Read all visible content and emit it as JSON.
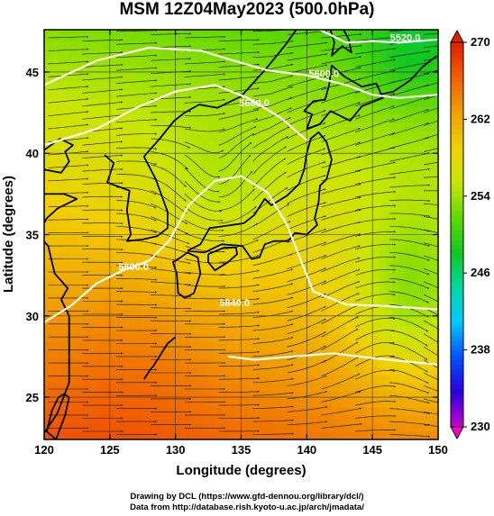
{
  "title": "MSM 12Z04May2023 (500.0hPa)",
  "x_axis": {
    "label": "Longitude (degrees)",
    "min": 120,
    "max": 150,
    "ticks": [
      "120",
      "125",
      "130",
      "135",
      "140",
      "145",
      "150"
    ]
  },
  "y_axis": {
    "label": "Latitude  (degrees)",
    "min": 22.4,
    "max": 47.6,
    "ticks": [
      "25",
      "30",
      "35",
      "40",
      "45"
    ]
  },
  "colorbar": {
    "min": 230,
    "max": 270,
    "ticks": [
      "230",
      "238",
      "246",
      "254",
      "262",
      "270"
    ],
    "colors": [
      "#cc00cc",
      "#2a00dd",
      "#0050ff",
      "#00c8ff",
      "#00d8a0",
      "#10c820",
      "#60d800",
      "#c8e600",
      "#f0d000",
      "#f0a000",
      "#f06000",
      "#e02000"
    ]
  },
  "contours": [
    {
      "label": "5520.0",
      "color": "#ffffff",
      "label_lon": 147.5,
      "label_lat": 46.9,
      "path": [
        [
          141,
          47.6
        ],
        [
          143,
          46.8
        ],
        [
          145,
          46.9
        ],
        [
          147,
          46.8
        ],
        [
          150,
          47.0
        ]
      ]
    },
    {
      "label": "5600.0",
      "color": "#ffffff",
      "label_lon": 141.3,
      "label_lat": 44.7,
      "path": [
        [
          120,
          44.2
        ],
        [
          124,
          45.7
        ],
        [
          128,
          46.5
        ],
        [
          132,
          46.3
        ],
        [
          134,
          45.8
        ],
        [
          137,
          45.1
        ],
        [
          140,
          44.8
        ],
        [
          143,
          44.2
        ],
        [
          145,
          43.6
        ],
        [
          147,
          43.4
        ],
        [
          150,
          43.6
        ]
      ]
    },
    {
      "label": "5680.0",
      "color": "#ffffff",
      "label_lon": 136.0,
      "label_lat": 42.9,
      "path": [
        [
          140,
          40.8
        ],
        [
          138,
          42.2
        ],
        [
          135.5,
          43.4
        ],
        [
          133,
          44.2
        ],
        [
          130,
          43.8
        ],
        [
          127,
          42.8
        ],
        [
          124,
          41.5
        ],
        [
          120,
          40.5
        ]
      ]
    },
    {
      "label": "5800.0",
      "color": "#ffffff",
      "label_lon": 126.8,
      "label_lat": 32.8,
      "path": [
        [
          120,
          29.6
        ],
        [
          122,
          30.6
        ],
        [
          124,
          32.0
        ],
        [
          126,
          32.8
        ],
        [
          128,
          33.4
        ],
        [
          129.5,
          34.6
        ],
        [
          131,
          36.8
        ],
        [
          133,
          38.3
        ],
        [
          135,
          38.6
        ],
        [
          137,
          37.6
        ],
        [
          138.5,
          35.6
        ],
        [
          139.5,
          33.5
        ],
        [
          140.5,
          31.5
        ],
        [
          143,
          30.7
        ],
        [
          146,
          30.6
        ],
        [
          150,
          30.4
        ]
      ]
    },
    {
      "label": "5840.0",
      "color": "#ffffff",
      "label_lon": 134.5,
      "label_lat": 30.6,
      "path": [
        [
          134,
          27.5
        ],
        [
          136,
          27.3
        ],
        [
          139,
          27.5
        ],
        [
          142,
          27.7
        ],
        [
          145,
          27.4
        ],
        [
          150,
          27.0
        ]
      ]
    }
  ],
  "colorbar_arrow_low": "magenta",
  "colorbar_arrow_high": "red",
  "credits": [
    "Drawing by DCL (https://www.gfd-dennou.org/library/dcl/)",
    "Data from http://database.rish.kyoto-u.ac.jp/arch/jmadata/"
  ]
}
